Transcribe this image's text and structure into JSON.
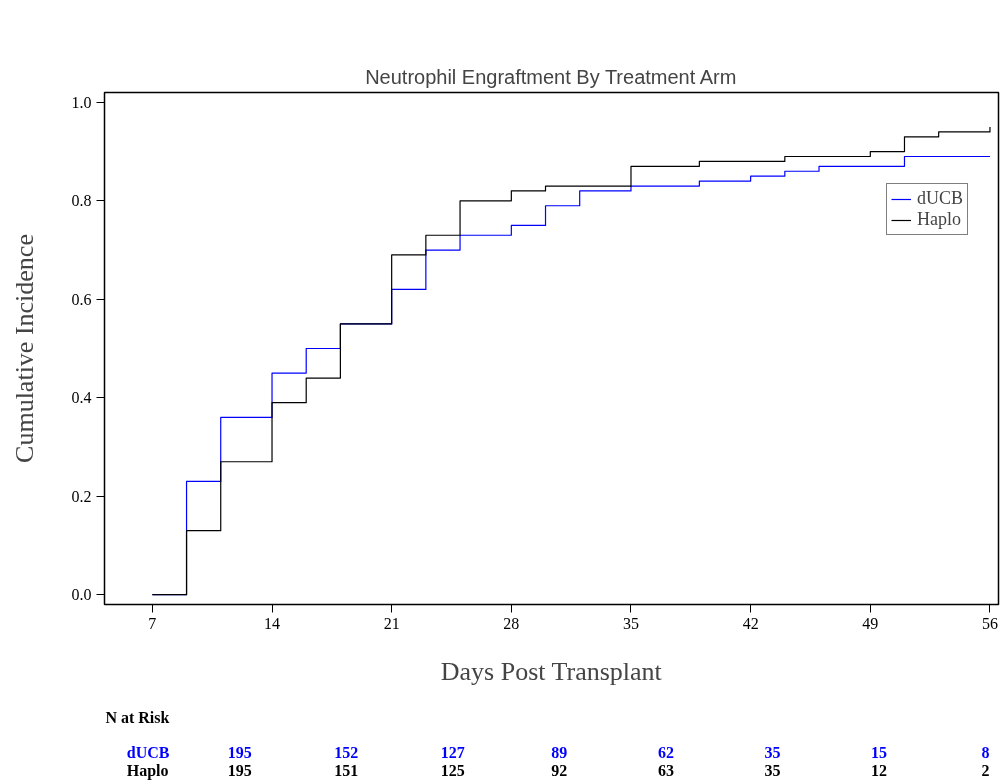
{
  "chart_data": {
    "type": "step",
    "title": "Neutrophil Engraftment By Treatment Arm",
    "xlabel": "Days Post Transplant",
    "ylabel": "Cumulative Incidence",
    "series": [
      {
        "name": "dUCB",
        "color": "#0000ff",
        "x": [
          7,
          9,
          11,
          14,
          16,
          18,
          21,
          23,
          25,
          28,
          30,
          32,
          35,
          39,
          42,
          44,
          46,
          51,
          56
        ],
        "values": [
          0,
          0.23,
          0.36,
          0.45,
          0.5,
          0.55,
          0.62,
          0.7,
          0.73,
          0.75,
          0.79,
          0.82,
          0.83,
          0.84,
          0.85,
          0.86,
          0.87,
          0.89,
          0.89
        ]
      },
      {
        "name": "Haplo",
        "color": "#000000",
        "x": [
          7,
          9,
          11,
          14,
          16,
          18,
          21,
          23,
          25,
          28,
          30,
          35,
          39,
          44,
          49,
          51,
          53,
          56
        ],
        "values": [
          0,
          0.13,
          0.27,
          0.39,
          0.44,
          0.55,
          0.69,
          0.73,
          0.8,
          0.82,
          0.83,
          0.87,
          0.88,
          0.89,
          0.9,
          0.93,
          0.94,
          0.95
        ]
      }
    ],
    "xlim": [
      4.2,
      56.5
    ],
    "ylim": [
      -0.02,
      1.02
    ],
    "xticks": [
      7,
      14,
      21,
      28,
      35,
      42,
      49,
      56
    ],
    "yticks": [
      {
        "value": 0,
        "label": "0.0"
      },
      {
        "value": 0.2,
        "label": "0.2"
      },
      {
        "value": 0.4,
        "label": "0.4"
      },
      {
        "value": 0.6,
        "label": "0.6"
      },
      {
        "value": 0.8,
        "label": "0.8"
      },
      {
        "value": 1,
        "label": "1.0"
      }
    ],
    "grid": false,
    "legend": "top right",
    "marker": "none",
    "line_style": "solid",
    "annotations": [
      "N at Risk",
      "dUCB",
      "195",
      "152",
      "127",
      "89",
      "62",
      "35",
      "15",
      "8",
      "Haplo",
      "195",
      "151",
      "125",
      "92",
      "63",
      "35",
      "12",
      "2"
    ]
  }
}
